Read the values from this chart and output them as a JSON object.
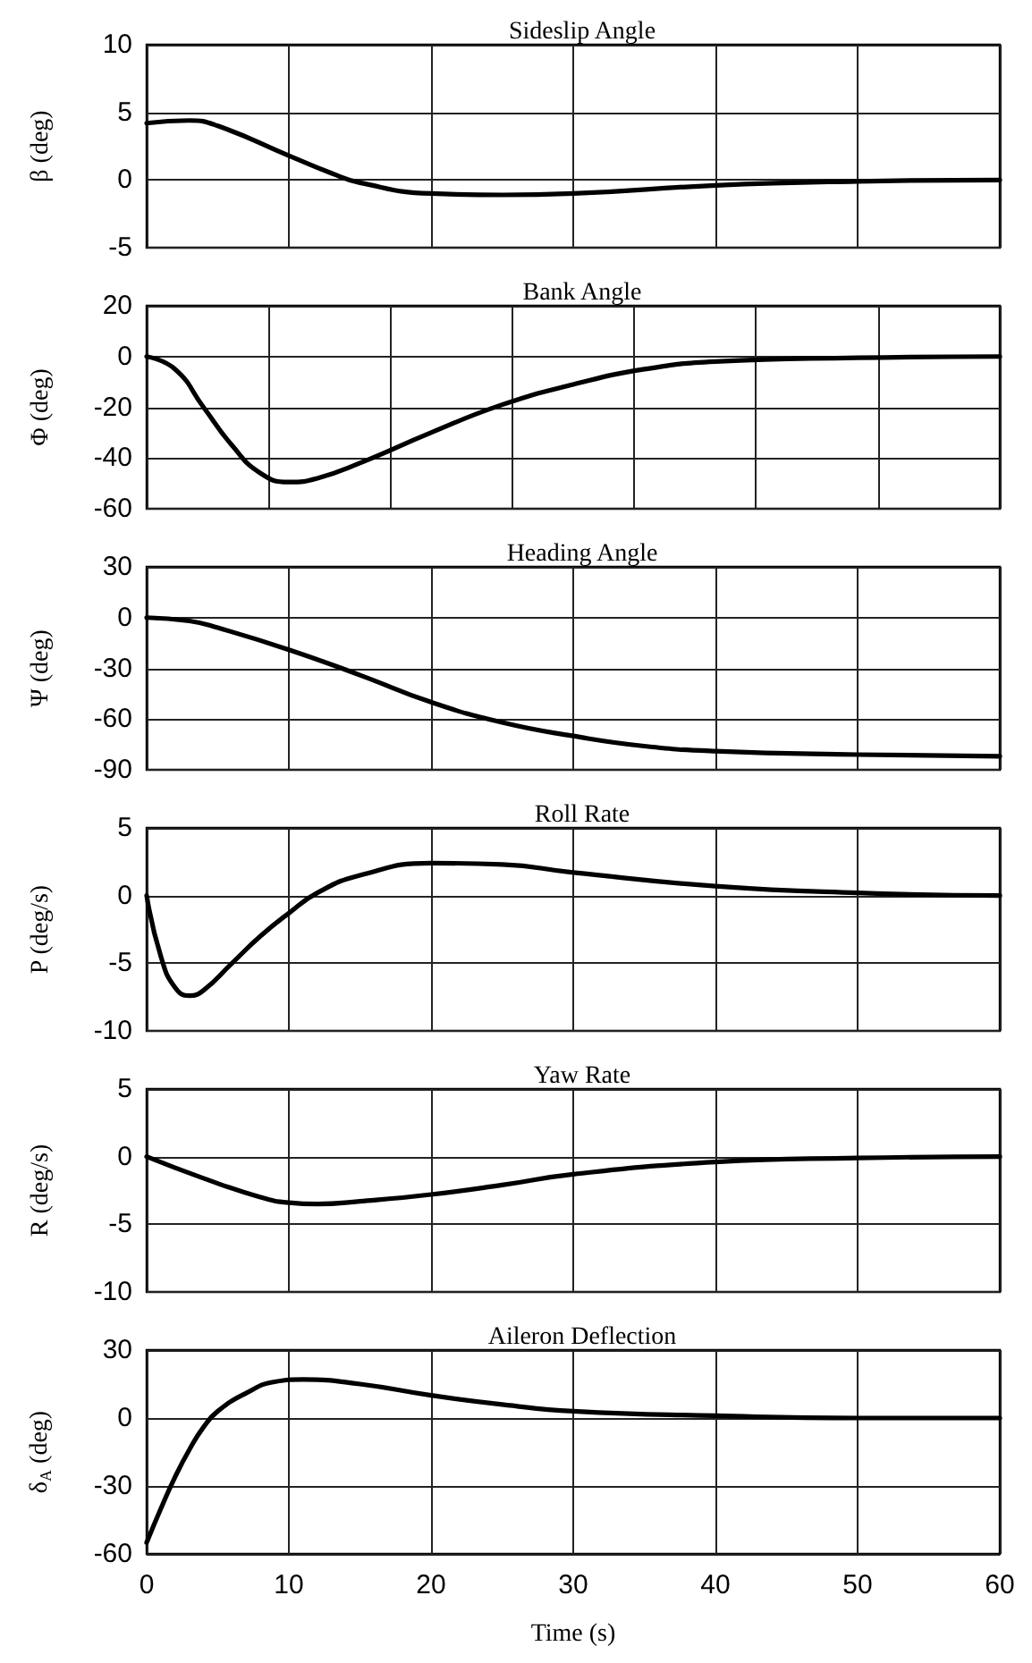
{
  "chart_data": [
    {
      "type": "line",
      "title": "Sideslip Angle",
      "ylabel": "β (deg)",
      "x": [
        0,
        3,
        5,
        10,
        13,
        15,
        20,
        25,
        30,
        40,
        50,
        60
      ],
      "series": [
        {
          "color": "#000000",
          "values": [
            4.2,
            4.4,
            4,
            1.8,
            0.5,
            -0.2,
            -1,
            -1.1,
            -1,
            -0.4,
            -0.1,
            0
          ]
        }
      ],
      "xlim": [
        0,
        60
      ],
      "xticks": [
        0,
        10,
        20,
        30,
        40,
        50,
        60
      ],
      "ylim": [
        -5,
        10
      ],
      "yticks": [
        -5,
        0,
        5,
        10
      ],
      "grid": true,
      "marker": "none",
      "line_style": "solid",
      "tick_labels": "y"
    },
    {
      "type": "line",
      "title": "Bank Angle",
      "ylabel": "Φ (deg)",
      "x": [
        0,
        2,
        4,
        6,
        8,
        10,
        12,
        15,
        20,
        25,
        30,
        35,
        40,
        50,
        60
      ],
      "series": [
        {
          "color": "#000000",
          "values": [
            0,
            -5,
            -20,
            -35,
            -46,
            -49.5,
            -48,
            -42,
            -30,
            -19,
            -11,
            -5,
            -2,
            -0.5,
            0
          ]
        }
      ],
      "xlim": [
        0,
        60
      ],
      "xticks": [
        0,
        8.571,
        17.143,
        25.714,
        34.286,
        42.857,
        51.429,
        60
      ],
      "ylim": [
        -60,
        20
      ],
      "yticks": [
        -60,
        -40,
        -20,
        0,
        20
      ],
      "grid": true,
      "marker": "none",
      "line_style": "solid",
      "tick_labels": "y"
    },
    {
      "type": "line",
      "title": "Heading Angle",
      "ylabel": "Ψ (deg)",
      "x": [
        0,
        3,
        5,
        10,
        15,
        20,
        25,
        30,
        35,
        40,
        50,
        60
      ],
      "series": [
        {
          "color": "#000000",
          "values": [
            0,
            -2,
            -6,
            -19,
            -34,
            -50,
            -62,
            -70,
            -76,
            -79,
            -81,
            -82
          ]
        }
      ],
      "xlim": [
        0,
        60
      ],
      "xticks": [
        0,
        10,
        20,
        30,
        40,
        50,
        60
      ],
      "ylim": [
        -90,
        30
      ],
      "yticks": [
        -90,
        -60,
        -30,
        0,
        30
      ],
      "grid": true,
      "marker": "none",
      "line_style": "solid",
      "tick_labels": "y"
    },
    {
      "type": "line",
      "title": "Roll Rate",
      "ylabel": "P (deg/s)",
      "x": [
        0,
        1,
        2,
        3,
        4,
        6,
        8,
        10,
        12,
        15,
        20,
        25,
        30,
        40,
        50,
        60
      ],
      "series": [
        {
          "color": "#000000",
          "values": [
            0,
            -4.5,
            -6.8,
            -7.4,
            -7,
            -5,
            -3,
            -1.3,
            0.2,
            1.5,
            2.4,
            2.3,
            1.7,
            0.7,
            0.2,
            0
          ]
        }
      ],
      "xlim": [
        0,
        60
      ],
      "xticks": [
        0,
        10,
        20,
        30,
        40,
        50,
        60
      ],
      "ylim": [
        -10,
        5
      ],
      "yticks": [
        -10,
        -5,
        0,
        5
      ],
      "grid": true,
      "marker": "none",
      "line_style": "solid",
      "tick_labels": "y"
    },
    {
      "type": "line",
      "title": "Yaw Rate",
      "ylabel": "R (deg/s)",
      "x": [
        0,
        4,
        8,
        10,
        12,
        15,
        20,
        25,
        30,
        40,
        50,
        60
      ],
      "series": [
        {
          "color": "#000000",
          "values": [
            0,
            -1.6,
            -3,
            -3.4,
            -3.5,
            -3.3,
            -2.8,
            -2.1,
            -1.3,
            -0.4,
            -0.1,
            0
          ]
        }
      ],
      "xlim": [
        0,
        60
      ],
      "xticks": [
        0,
        10,
        20,
        30,
        40,
        50,
        60
      ],
      "ylim": [
        -10,
        5
      ],
      "yticks": [
        -10,
        -5,
        0,
        5
      ],
      "grid": true,
      "marker": "none",
      "line_style": "solid",
      "tick_labels": "y"
    },
    {
      "type": "line",
      "title": "Aileron Deflection",
      "ylabel": "δ$_{A}$ (deg)",
      "xlabel": "Time (s)",
      "x": [
        0,
        1,
        2,
        3,
        4,
        5,
        7,
        9,
        11,
        15,
        20,
        25,
        30,
        40,
        50,
        60
      ],
      "series": [
        {
          "color": "#000000",
          "values": [
            -55,
            -40,
            -26,
            -14,
            -4,
            3,
            11,
            16,
            17,
            15,
            10,
            6,
            3,
            1,
            0,
            0
          ]
        }
      ],
      "xlim": [
        0,
        60
      ],
      "xticks": [
        0,
        10,
        20,
        30,
        40,
        50,
        60
      ],
      "ylim": [
        -60,
        30
      ],
      "yticks": [
        -60,
        -30,
        0,
        30
      ],
      "grid": true,
      "marker": "none",
      "line_style": "solid"
    }
  ]
}
